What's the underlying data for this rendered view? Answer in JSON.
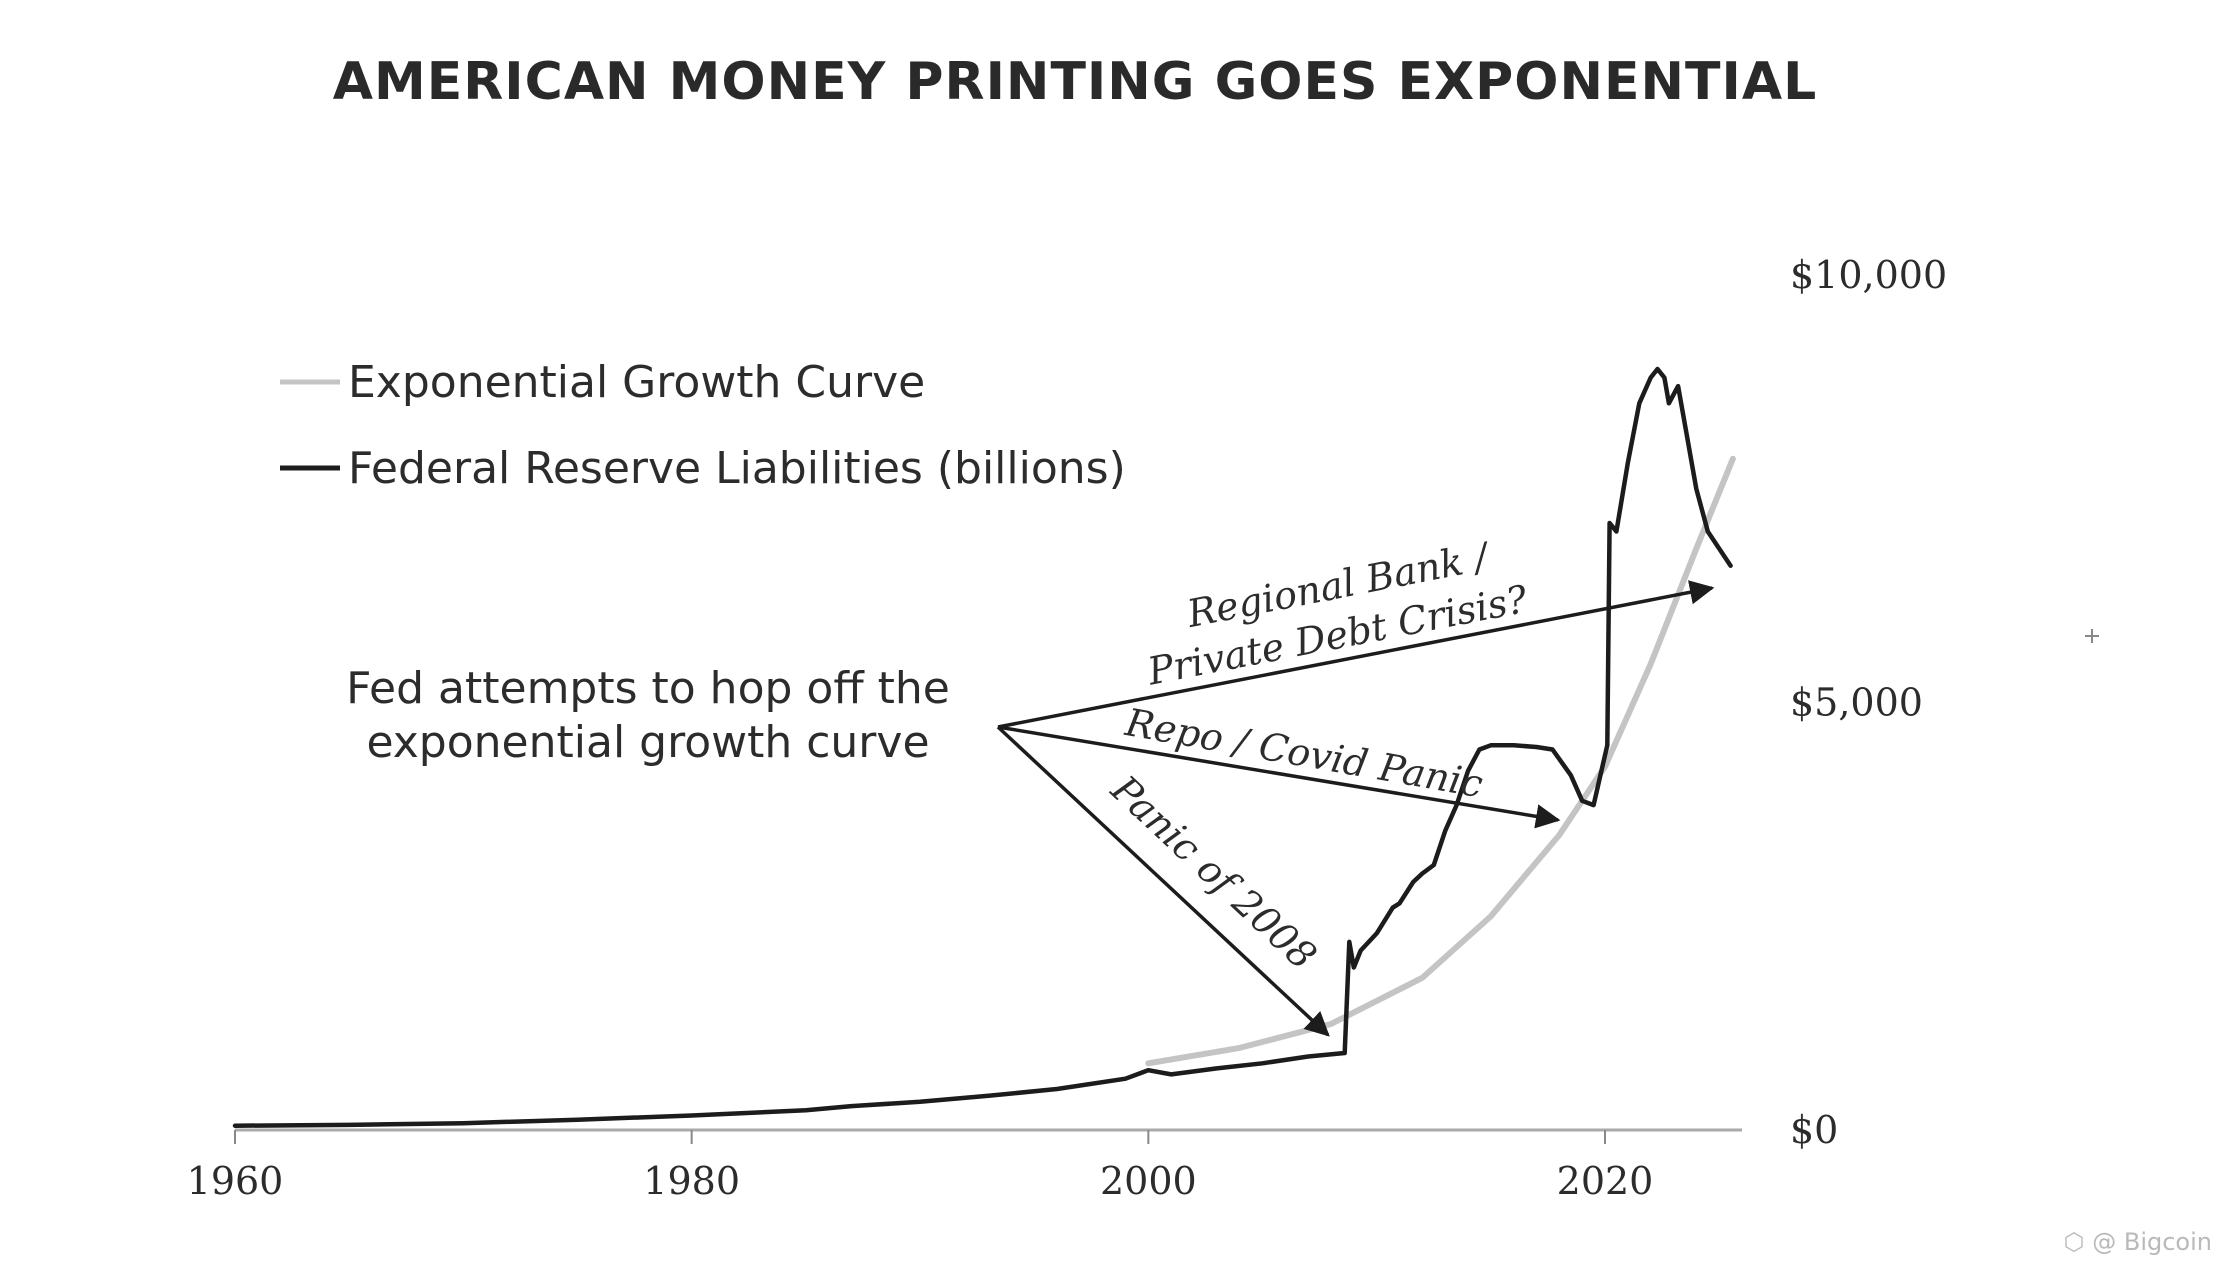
{
  "chart_data": {
    "type": "line",
    "title": "AMERICAN MONEY PRINTING GOES EXPONENTIAL",
    "xlabel": "",
    "ylabel": "",
    "xlim": [
      1960,
      2026
    ],
    "ylim": [
      0,
      10000
    ],
    "x_ticks": [
      1960,
      1980,
      2000,
      2020
    ],
    "x_tick_labels": [
      "1960",
      "1980",
      "2000",
      "2020"
    ],
    "y_ticks": [
      0,
      5000,
      10000
    ],
    "y_tick_labels": [
      "$0",
      "$5,000",
      "$10,000"
    ],
    "y_axis_side": "right",
    "grid": false,
    "legend_position": "top-left",
    "series": [
      {
        "name": "Exponential Growth Curve",
        "color": "#c4c4c4",
        "x": [
          2000,
          2004,
          2008,
          2012,
          2015,
          2018,
          2020,
          2022,
          2024,
          2025.6
        ],
        "y": [
          780,
          960,
          1240,
          1780,
          2500,
          3450,
          4250,
          5450,
          6800,
          7850
        ]
      },
      {
        "name": "Federal Reserve Liabilities (billions)",
        "color": "#1c1c1c",
        "x": [
          1960,
          1965,
          1970,
          1975,
          1980,
          1985,
          1987,
          1990,
          1993,
          1996,
          1999,
          2000,
          2001,
          2003,
          2005,
          2007,
          2008.6,
          2008.8,
          2009,
          2009.3,
          2010,
          2010.7,
          2011,
          2011.6,
          2012,
          2012.5,
          2013,
          2013.5,
          2014,
          2014.5,
          2015,
          2016,
          2017,
          2017.7,
          2018.5,
          2019,
          2019.5,
          2019.8,
          2020.1,
          2020.2,
          2020.5,
          2021,
          2021.5,
          2022,
          2022.3,
          2022.6,
          2022.8,
          2023.2,
          2023.6,
          2024,
          2024.5,
          2025,
          2025.5
        ],
        "y": [
          50,
          60,
          80,
          120,
          170,
          230,
          280,
          330,
          400,
          480,
          600,
          700,
          650,
          720,
          780,
          860,
          900,
          2200,
          1900,
          2100,
          2300,
          2600,
          2650,
          2900,
          3000,
          3100,
          3500,
          3800,
          4200,
          4450,
          4500,
          4500,
          4480,
          4450,
          4150,
          3850,
          3800,
          4150,
          4500,
          7100,
          7000,
          7800,
          8500,
          8800,
          8900,
          8800,
          8500,
          8700,
          8100,
          7500,
          7000,
          6800,
          6600
        ]
      }
    ],
    "annotations": {
      "callout_line1": "Fed attempts to hop off the",
      "callout_line2": "exponential growth curve",
      "arrow_1": "Panic of 2008",
      "arrow_2": "Repo / Covid Panic",
      "arrow_3_line1": "Regional Bank /",
      "arrow_3_line2": "Private Debt Crisis?"
    }
  },
  "watermark": "@ Bigcoin",
  "watermark_icon": "hexagon-logo-icon"
}
